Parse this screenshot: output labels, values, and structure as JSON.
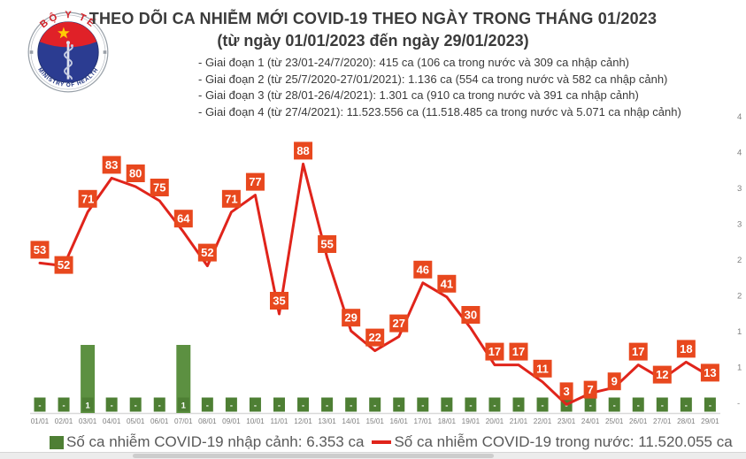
{
  "logo": {
    "top_text": "BỘ Y TẾ",
    "bottom_text": "MINISTRY OF HEALTH"
  },
  "header": {
    "title": "THEO DÕI CA NHIỄM MỚI COVID-19 THEO NGÀY TRONG THÁNG 01/2023",
    "subtitle": "(từ ngày 01/01/2023 đến ngày 29/01/2023)",
    "period_lines": [
      "- Giai đoạn 1 (từ 23/01-24/7/2020): 415 ca (106 ca trong nước và 309 ca nhập cảnh)",
      "- Giai đoạn 2 (từ 25/7/2020-27/01/2021): 1.136 ca (554 ca trong nước và 582 ca nhập cảnh)",
      "- Giai đoạn 3 (từ 28/01-26/4/2021): 1.301 ca (910 ca trong nước và 391 ca nhập cảnh)",
      "- Giai đoạn 4 (từ 27/4/2021): 11.523.556 ca (11.518.485 ca trong nước và 5.071 ca nhập cảnh)"
    ]
  },
  "chart_data": {
    "type": "line+bar",
    "title": "Ca nhiễm mới COVID-19 theo ngày trong tháng 01/2023",
    "categories": [
      "01/01",
      "02/01",
      "03/01",
      "04/01",
      "05/01",
      "06/01",
      "07/01",
      "08/01",
      "09/01",
      "10/01",
      "11/01",
      "12/01",
      "13/01",
      "14/01",
      "15/01",
      "16/01",
      "17/01",
      "18/01",
      "19/01",
      "20/01",
      "21/01",
      "22/01",
      "23/01",
      "24/01",
      "25/01",
      "26/01",
      "27/01",
      "28/01",
      "29/01"
    ],
    "series": [
      {
        "name": "Số ca nhiễm COVID-19 trong nước",
        "type": "line",
        "color": "#e0241b",
        "label_bg": "#e8481e",
        "values": [
          53,
          52,
          71,
          83,
          80,
          75,
          64,
          52,
          71,
          77,
          35,
          88,
          55,
          29,
          22,
          27,
          46,
          41,
          30,
          17,
          17,
          11,
          3,
          7,
          9,
          17,
          12,
          18,
          13
        ]
      },
      {
        "name": "Số ca nhiễm COVID-19 nhập cảnh",
        "type": "bar",
        "color": "#5c9041",
        "label_bg": "#4e7f34",
        "values": [
          0,
          0,
          1,
          0,
          0,
          0,
          1,
          0,
          0,
          0,
          0,
          0,
          0,
          0,
          0,
          0,
          0,
          0,
          0,
          0,
          0,
          0,
          0,
          0,
          0,
          0,
          0,
          0,
          0
        ],
        "labels": [
          "-",
          "-",
          "1",
          "-",
          "-",
          "-",
          "1",
          "-",
          "-",
          "-",
          "-",
          "-",
          "-",
          "-",
          "-",
          "-",
          "-",
          "-",
          "-",
          "-",
          "-",
          "-",
          "-",
          "-",
          "-",
          "-",
          "-",
          "-",
          "-"
        ]
      }
    ],
    "right_axis_tick_labels": [
      "4",
      "4",
      "3",
      "3",
      "2",
      "2",
      "1",
      "1",
      "-"
    ],
    "grid": false,
    "legend_position": "bottom",
    "label_offsets": {
      "1": -11,
      "23": -14,
      "24": -17,
      "26": -15,
      "28": -14
    }
  },
  "legend": {
    "items": [
      {
        "label": "Số ca nhiễm COVID-19 nhập cảnh: 6.353 ca",
        "color": "#4e7f34",
        "marker": "square"
      },
      {
        "label": "Số ca nhiễm COVID-19 trong nước: 11.520.055 ca",
        "color": "#e0241b",
        "marker": "line"
      }
    ]
  }
}
